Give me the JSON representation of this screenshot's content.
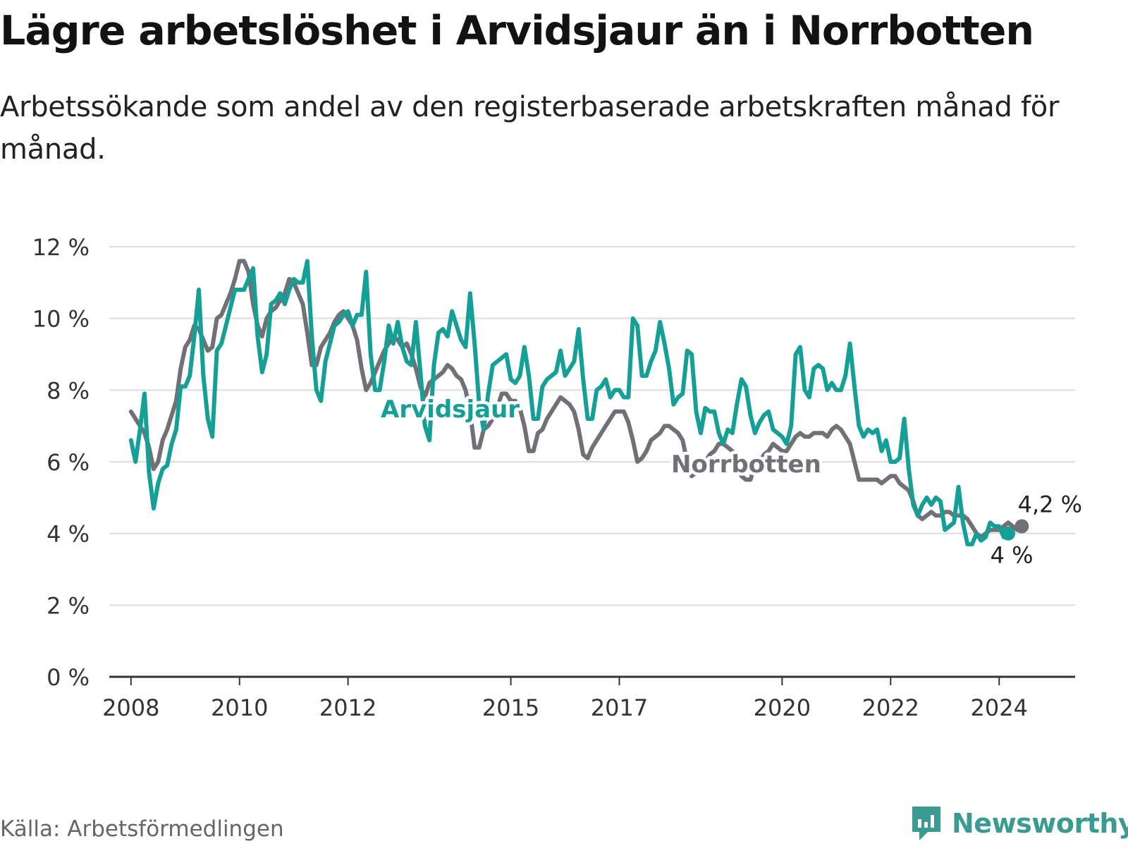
{
  "title": "Lägre arbetslöshet i Arvidsjaur än i Norrbotten",
  "subtitle": "Arbetssökande som andel av den registerbaserade arbetskraften månad för månad.",
  "source": "Källa: Arbetsförmedlingen",
  "brand": "Newsworthy",
  "colors": {
    "arvidsjaur": "#14a096",
    "norrbotten": "#707076",
    "grid": "#dcdcdc",
    "axis": "#333333"
  },
  "chart_data": {
    "type": "line",
    "title": "Lägre arbetslöshet i Arvidsjaur än i Norrbotten",
    "xlabel": "",
    "ylabel": "",
    "ylim": [
      0,
      12
    ],
    "xlim": [
      2007.6,
      2025.4
    ],
    "y_ticks": [
      0,
      2,
      4,
      6,
      8,
      10,
      12
    ],
    "y_tick_labels": [
      "0 %",
      "2 %",
      "4 %",
      "6 %",
      "8 %",
      "10 %",
      "12 %"
    ],
    "x_ticks": [
      2008,
      2010,
      2012,
      2015,
      2017,
      2020,
      2022,
      2024
    ],
    "x_tick_labels": [
      "2008",
      "2010",
      "2012",
      "2015",
      "2017",
      "2020",
      "2022",
      "2024"
    ],
    "grid": true,
    "series": [
      {
        "name": "Norrbotten",
        "label": "Norrbotten",
        "end_label": "4,2 %",
        "end_value": 4.2,
        "x_start": 2008.0,
        "step": 0.0833333,
        "values": [
          7.4,
          7.2,
          7.0,
          6.8,
          6.4,
          5.8,
          6.0,
          6.6,
          6.9,
          7.3,
          7.7,
          8.6,
          9.2,
          9.4,
          9.8,
          9.7,
          9.4,
          9.1,
          9.2,
          10.0,
          10.1,
          10.4,
          10.7,
          11.1,
          11.6,
          11.6,
          11.3,
          10.4,
          9.8,
          9.5,
          10.0,
          10.2,
          10.3,
          10.5,
          10.7,
          11.1,
          11.0,
          10.7,
          10.4,
          9.6,
          8.7,
          8.7,
          9.2,
          9.4,
          9.6,
          9.9,
          10.1,
          10.2,
          10.0,
          9.8,
          9.4,
          8.6,
          8.0,
          8.2,
          8.5,
          8.8,
          9.1,
          9.3,
          9.5,
          9.4,
          9.2,
          9.3,
          9.0,
          8.6,
          8.1,
          7.8,
          8.2,
          8.3,
          8.4,
          8.5,
          8.7,
          8.6,
          8.4,
          8.3,
          8.0,
          7.4,
          6.4,
          6.4,
          6.9,
          7.0,
          7.2,
          7.5,
          7.9,
          7.9,
          7.7,
          7.7,
          7.5,
          7.0,
          6.3,
          6.3,
          6.8,
          6.9,
          7.2,
          7.4,
          7.6,
          7.8,
          7.7,
          7.6,
          7.4,
          6.9,
          6.2,
          6.1,
          6.4,
          6.6,
          6.8,
          7.0,
          7.2,
          7.4,
          7.4,
          7.4,
          7.1,
          6.6,
          6.0,
          6.1,
          6.3,
          6.6,
          6.7,
          6.8,
          7.0,
          7.0,
          6.9,
          6.8,
          6.6,
          6.0,
          5.6,
          5.7,
          5.9,
          6.0,
          6.2,
          6.3,
          6.5,
          6.5,
          6.4,
          6.3,
          6.0,
          5.6,
          5.5,
          5.5,
          5.9,
          6.0,
          6.2,
          6.3,
          6.5,
          6.4,
          6.3,
          6.3,
          6.5,
          6.7,
          6.8,
          6.7,
          6.7,
          6.8,
          6.8,
          6.8,
          6.7,
          6.9,
          7.0,
          6.9,
          6.7,
          6.5,
          6.0,
          5.5,
          5.5,
          5.5,
          5.5,
          5.5,
          5.4,
          5.5,
          5.6,
          5.6,
          5.4,
          5.3,
          5.2,
          4.9,
          4.5,
          4.4,
          4.5,
          4.6,
          4.5,
          4.5,
          4.6,
          4.6,
          4.5,
          4.5,
          4.5,
          4.4,
          4.2,
          4.0,
          3.9,
          4.0,
          4.1,
          4.1,
          4.1,
          4.2,
          4.3,
          4.2,
          4.1,
          4.2
        ]
      },
      {
        "name": "Arvidsjaur",
        "label": "Arvidsjaur",
        "end_label": "4 %",
        "end_value": 4.0,
        "x_start": 2008.0,
        "step": 0.0833333,
        "values": [
          6.6,
          6.0,
          6.9,
          7.9,
          5.7,
          4.7,
          5.4,
          5.8,
          5.9,
          6.5,
          6.9,
          8.1,
          8.1,
          8.4,
          9.5,
          10.8,
          8.4,
          7.2,
          6.7,
          9.1,
          9.3,
          9.8,
          10.3,
          10.8,
          10.8,
          10.8,
          11.1,
          11.4,
          9.5,
          8.5,
          9.0,
          10.4,
          10.5,
          10.7,
          10.4,
          10.8,
          11.1,
          11.0,
          11.0,
          11.6,
          9.5,
          8.0,
          7.7,
          8.8,
          9.3,
          9.8,
          9.9,
          10.1,
          10.2,
          9.8,
          10.1,
          10.1,
          11.3,
          9.0,
          8.0,
          8.0,
          8.8,
          9.8,
          9.3,
          9.9,
          9.2,
          8.8,
          8.7,
          9.9,
          8.5,
          7.0,
          6.6,
          8.7,
          9.6,
          9.7,
          9.5,
          10.2,
          9.8,
          9.4,
          9.2,
          10.7,
          9.3,
          7.6,
          6.9,
          7.9,
          8.7,
          8.8,
          8.9,
          9.0,
          8.3,
          8.2,
          8.4,
          9.2,
          8.4,
          7.2,
          7.2,
          8.1,
          8.3,
          8.4,
          8.5,
          9.1,
          8.4,
          8.6,
          8.8,
          9.7,
          8.3,
          7.2,
          7.2,
          8.0,
          8.1,
          8.3,
          7.8,
          8.0,
          8.0,
          7.8,
          7.8,
          10.0,
          9.8,
          8.4,
          8.4,
          8.8,
          9.1,
          9.9,
          9.3,
          8.6,
          7.6,
          7.8,
          7.9,
          9.1,
          9.0,
          7.4,
          6.8,
          7.5,
          7.4,
          7.4,
          6.8,
          6.5,
          6.9,
          6.8,
          7.6,
          8.3,
          8.1,
          7.3,
          6.8,
          7.1,
          7.3,
          7.4,
          6.9,
          6.8,
          6.7,
          6.5,
          7.0,
          9.0,
          9.2,
          8.0,
          7.8,
          8.6,
          8.7,
          8.6,
          8.0,
          8.2,
          8.0,
          8.0,
          8.4,
          9.3,
          8.1,
          7.0,
          6.7,
          6.9,
          6.8,
          6.9,
          6.3,
          6.6,
          6.0,
          6.0,
          6.1,
          7.2,
          5.8,
          4.8,
          4.5,
          4.8,
          5.0,
          4.8,
          5.0,
          4.9,
          4.1,
          4.2,
          4.3,
          5.3,
          4.3,
          3.7,
          3.7,
          4.0,
          3.8,
          3.9,
          4.3,
          4.2,
          4.2,
          3.9,
          4.0
        ]
      }
    ]
  }
}
